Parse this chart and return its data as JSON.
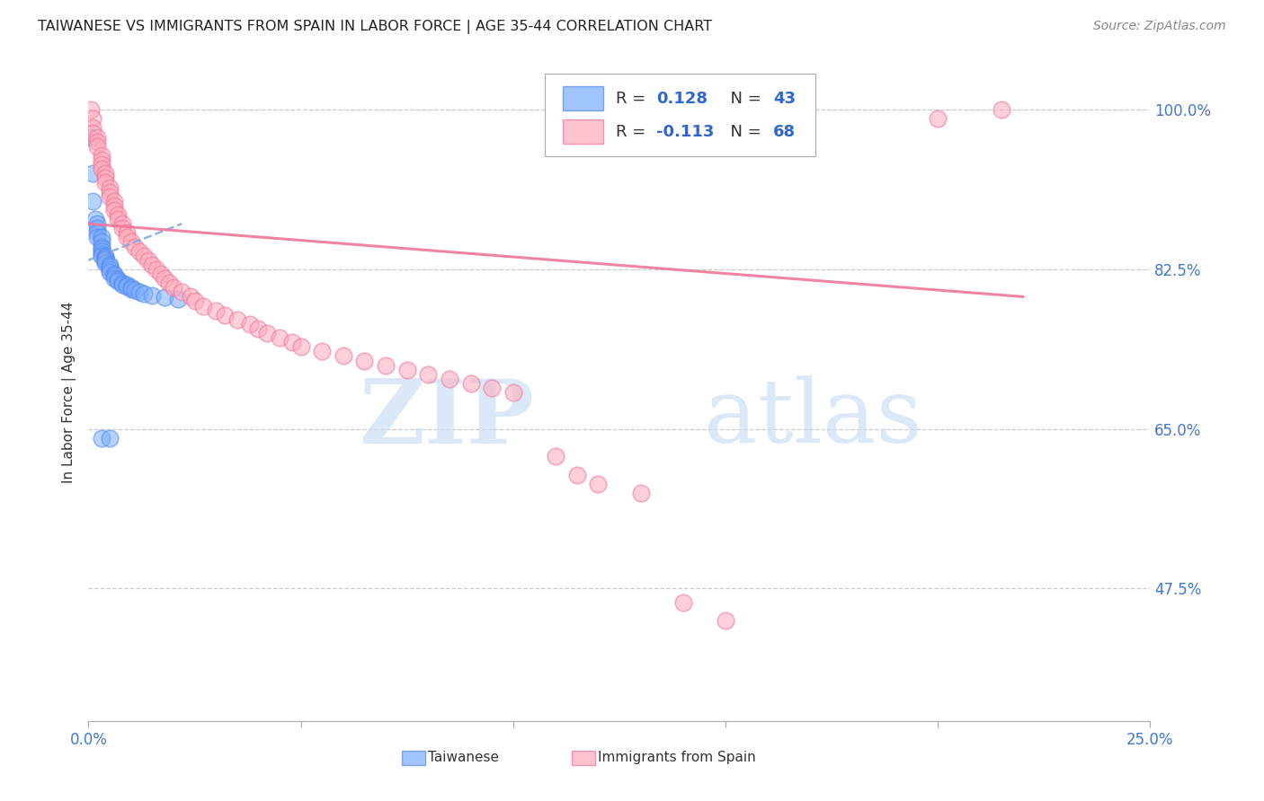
{
  "title": "TAIWANESE VS IMMIGRANTS FROM SPAIN IN LABOR FORCE | AGE 35-44 CORRELATION CHART",
  "source": "Source: ZipAtlas.com",
  "ylabel": "In Labor Force | Age 35-44",
  "xlim": [
    0.0,
    0.25
  ],
  "ylim": [
    0.33,
    1.05
  ],
  "ytick_positions": [
    1.0,
    0.825,
    0.65,
    0.475
  ],
  "ytick_labels": [
    "100.0%",
    "82.5%",
    "65.0%",
    "47.5%"
  ],
  "blue_R": 0.128,
  "blue_N": 43,
  "pink_R": -0.113,
  "pink_N": 68,
  "blue_color": "#7aadff",
  "blue_edge": "#5588ee",
  "pink_color": "#ffaabb",
  "pink_edge": "#ee7799",
  "blue_line_color": "#88aadd",
  "pink_line_color": "#ee7799",
  "blue_scatter_x": [
    0.0005,
    0.001,
    0.001,
    0.0015,
    0.002,
    0.002,
    0.002,
    0.002,
    0.003,
    0.003,
    0.003,
    0.003,
    0.003,
    0.003,
    0.003,
    0.004,
    0.004,
    0.004,
    0.004,
    0.004,
    0.005,
    0.005,
    0.005,
    0.005,
    0.006,
    0.006,
    0.006,
    0.007,
    0.007,
    0.008,
    0.008,
    0.009,
    0.009,
    0.01,
    0.01,
    0.011,
    0.012,
    0.013,
    0.015,
    0.018,
    0.021,
    0.003,
    0.005
  ],
  "blue_scatter_y": [
    0.97,
    0.93,
    0.9,
    0.88,
    0.875,
    0.87,
    0.865,
    0.86,
    0.86,
    0.855,
    0.85,
    0.848,
    0.845,
    0.842,
    0.84,
    0.84,
    0.838,
    0.836,
    0.834,
    0.832,
    0.83,
    0.828,
    0.825,
    0.822,
    0.82,
    0.818,
    0.815,
    0.814,
    0.812,
    0.81,
    0.808,
    0.808,
    0.806,
    0.805,
    0.803,
    0.802,
    0.8,
    0.798,
    0.796,
    0.794,
    0.792,
    0.64,
    0.64
  ],
  "pink_scatter_x": [
    0.0005,
    0.001,
    0.001,
    0.001,
    0.002,
    0.002,
    0.002,
    0.003,
    0.003,
    0.003,
    0.003,
    0.004,
    0.004,
    0.004,
    0.005,
    0.005,
    0.005,
    0.006,
    0.006,
    0.006,
    0.007,
    0.007,
    0.008,
    0.008,
    0.009,
    0.009,
    0.01,
    0.011,
    0.012,
    0.013,
    0.014,
    0.015,
    0.016,
    0.017,
    0.018,
    0.019,
    0.02,
    0.022,
    0.024,
    0.025,
    0.027,
    0.03,
    0.032,
    0.035,
    0.038,
    0.04,
    0.042,
    0.045,
    0.048,
    0.05,
    0.055,
    0.06,
    0.065,
    0.07,
    0.075,
    0.08,
    0.085,
    0.09,
    0.095,
    0.1,
    0.11,
    0.115,
    0.12,
    0.13,
    0.14,
    0.15,
    0.2,
    0.215
  ],
  "pink_scatter_y": [
    1.0,
    0.99,
    0.98,
    0.975,
    0.97,
    0.965,
    0.96,
    0.95,
    0.945,
    0.94,
    0.935,
    0.93,
    0.925,
    0.92,
    0.915,
    0.91,
    0.905,
    0.9,
    0.895,
    0.89,
    0.885,
    0.88,
    0.875,
    0.87,
    0.865,
    0.86,
    0.855,
    0.85,
    0.845,
    0.84,
    0.835,
    0.83,
    0.825,
    0.82,
    0.815,
    0.81,
    0.805,
    0.8,
    0.795,
    0.79,
    0.785,
    0.78,
    0.775,
    0.77,
    0.765,
    0.76,
    0.755,
    0.75,
    0.745,
    0.74,
    0.735,
    0.73,
    0.725,
    0.72,
    0.715,
    0.71,
    0.705,
    0.7,
    0.695,
    0.69,
    0.62,
    0.6,
    0.59,
    0.58,
    0.46,
    0.44,
    0.99,
    1.0
  ],
  "blue_trend_x": [
    0.0,
    0.022
  ],
  "blue_trend_y": [
    0.835,
    0.875
  ],
  "pink_trend_x": [
    0.0,
    0.22
  ],
  "pink_trend_y": [
    0.875,
    0.795
  ],
  "watermark_zip": "ZIP",
  "watermark_atlas": "atlas",
  "background_color": "#ffffff",
  "grid_color": "#cccccc"
}
